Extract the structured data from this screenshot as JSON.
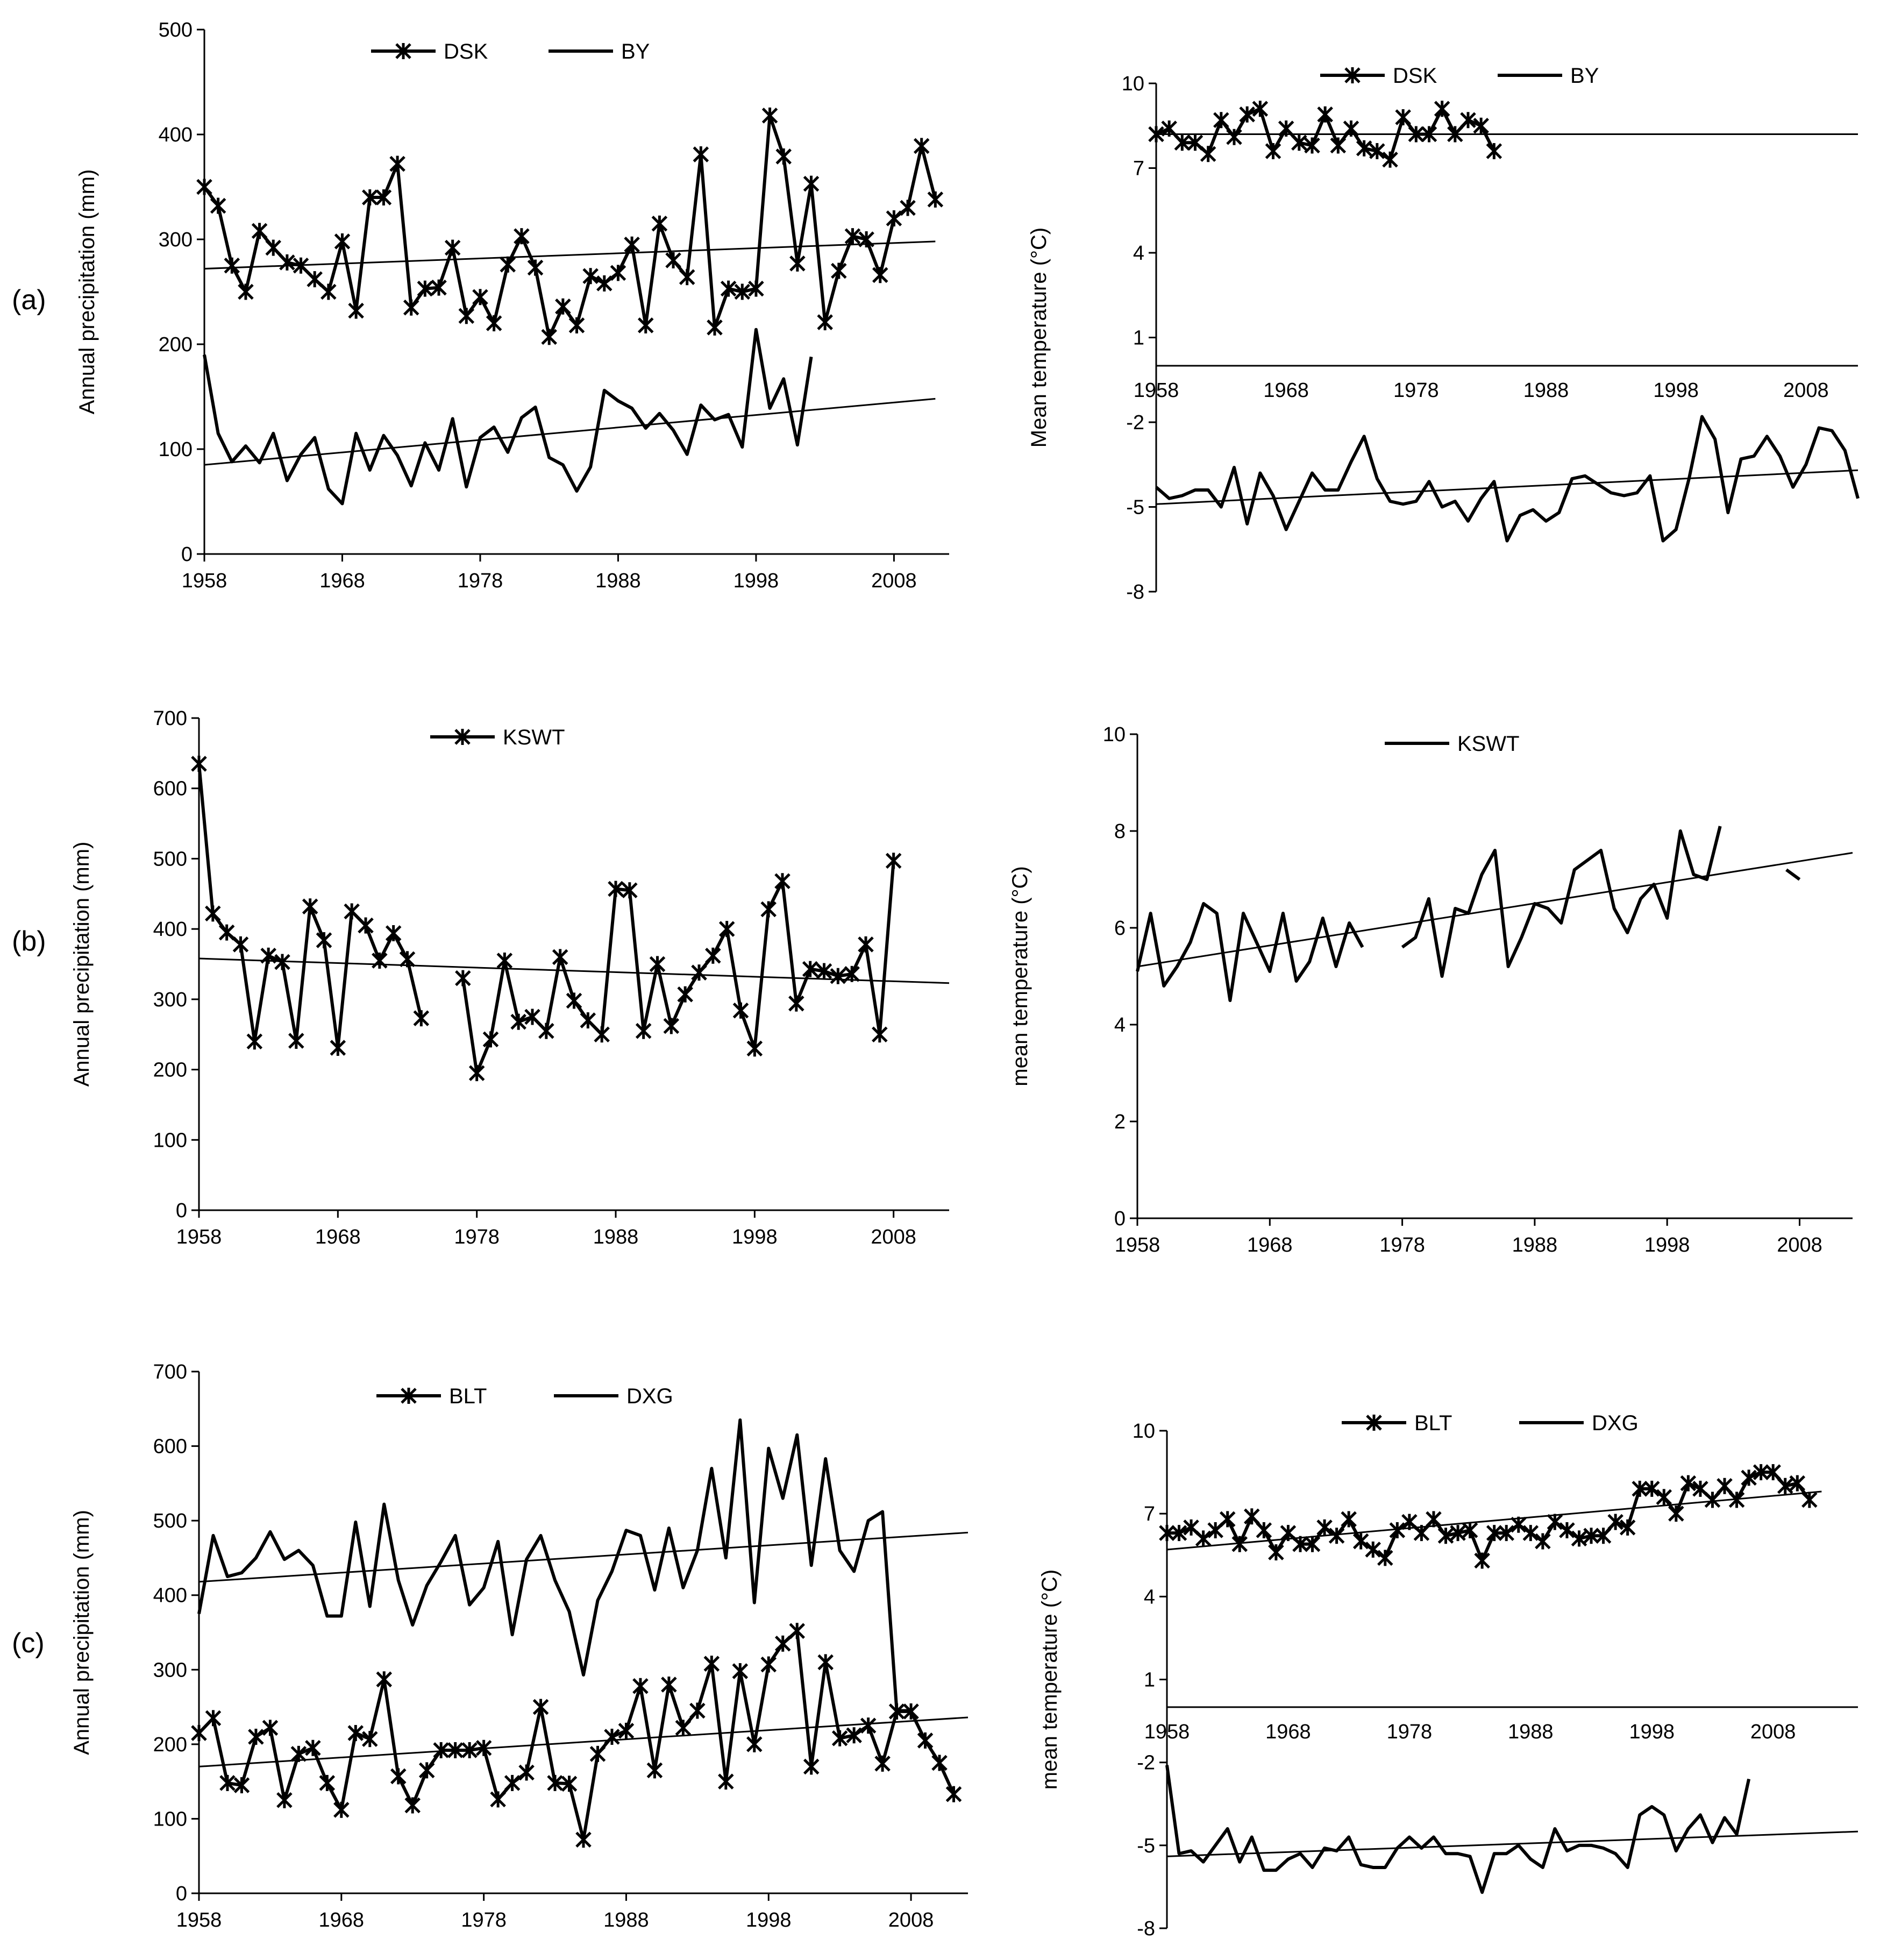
{
  "panel_labels": [
    "(a)",
    "(b)",
    "(c)"
  ],
  "chart_data": [
    {
      "id": "a-precip",
      "type": "line",
      "ylabel": "Annual precipitation (mm)",
      "ylim": [
        0,
        500
      ],
      "yticks": [
        "0",
        "100",
        "200",
        "300",
        "400",
        "500"
      ],
      "xlim": [
        1958,
        2012
      ],
      "xticks": [
        "1958",
        "1968",
        "1978",
        "1988",
        "1998",
        "2008"
      ],
      "legend": [
        "DSK",
        "BY"
      ],
      "series": [
        {
          "name": "DSK",
          "marker": "star",
          "x0": 1958,
          "values": [
            350,
            332,
            275,
            250,
            308,
            292,
            278,
            275,
            262,
            250,
            298,
            232,
            340,
            340,
            372,
            235,
            253,
            254,
            292,
            227,
            245,
            220,
            276,
            303,
            273,
            207,
            236,
            218,
            265,
            258,
            268,
            295,
            218,
            315,
            280,
            264,
            381,
            216,
            253,
            250,
            253,
            418,
            379,
            277,
            353,
            221,
            270,
            303,
            300,
            266,
            320,
            330,
            389,
            338
          ]
        },
        {
          "name": "BY",
          "marker": "none",
          "x0": 1958,
          "values": [
            190,
            115,
            88,
            103,
            87,
            115,
            70,
            95,
            111,
            62,
            48,
            115,
            80,
            113,
            94,
            65,
            106,
            80,
            129,
            64,
            111,
            121,
            97,
            130,
            140,
            92,
            85,
            60,
            83,
            156,
            146,
            139,
            120,
            134,
            118,
            95,
            142,
            128,
            133,
            102,
            214,
            139,
            167,
            104,
            188
          ]
        }
      ],
      "trends": [
        {
          "x": [
            1958,
            2011
          ],
          "y": [
            272,
            298
          ]
        },
        {
          "x": [
            1958,
            2011
          ],
          "y": [
            85,
            148
          ]
        }
      ]
    },
    {
      "id": "a-temp",
      "type": "line",
      "ylabel": "Mean temperature (°C)",
      "ylim": [
        -8,
        10
      ],
      "yticks": [
        "-8",
        "-5",
        "-2",
        "1",
        "4",
        "7",
        "10"
      ],
      "xlim": [
        1958,
        2012
      ],
      "xticks": [
        "1958",
        "1968",
        "1978",
        "1988",
        "1998",
        "2008"
      ],
      "xaxis_at": 0,
      "legend": [
        "DSK",
        "BY"
      ],
      "series": [
        {
          "name": "DSK",
          "marker": "star",
          "x0": 1958,
          "values": [
            8.2,
            8.4,
            7.9,
            7.9,
            7.5,
            8.7,
            8.1,
            8.9,
            9.1,
            7.6,
            8.4,
            7.9,
            7.8,
            8.9,
            7.8,
            8.4,
            7.7,
            7.6,
            7.3,
            8.8,
            8.2,
            8.2,
            9.1,
            8.2,
            8.7,
            8.5,
            7.6
          ]
        },
        {
          "name": "BY",
          "marker": "none",
          "x0": 1958,
          "values": [
            -4.3,
            -4.7,
            -4.6,
            -4.4,
            -4.4,
            -5.0,
            -3.6,
            -5.6,
            -3.8,
            -4.6,
            -5.8,
            -4.8,
            -3.8,
            -4.4,
            -4.4,
            -3.4,
            -2.5,
            -4.0,
            -4.8,
            -4.9,
            -4.8,
            -4.1,
            -5.0,
            -4.8,
            -5.5,
            -4.7,
            -4.1,
            -6.2,
            -5.3,
            -5.1,
            -5.5,
            -5.2,
            -4.0,
            -3.9,
            -4.2,
            -4.5,
            -4.6,
            -4.5,
            -3.9,
            -6.2,
            -5.8,
            -4.0,
            -1.8,
            -2.6,
            -5.2,
            -3.3,
            -3.2,
            -2.5,
            -3.2,
            -4.3,
            -3.5,
            -2.2,
            -2.3,
            -3.0,
            -4.7
          ]
        },
        {
          "name": "BY trend",
          "marker": "none",
          "x0": 1958,
          "line_only": true,
          "values": []
        }
      ],
      "trends": [
        {
          "x": [
            1958,
            2012
          ],
          "y": [
            8.2,
            8.2
          ]
        },
        {
          "x": [
            1958,
            2012
          ],
          "y": [
            -4.9,
            -3.7
          ]
        }
      ]
    },
    {
      "id": "b-precip",
      "type": "line",
      "ylabel": "Annual precipitation (mm)",
      "ylim": [
        0,
        700
      ],
      "yticks": [
        "0",
        "100",
        "200",
        "300",
        "400",
        "500",
        "600",
        "700"
      ],
      "xlim": [
        1958,
        2012
      ],
      "xticks": [
        "1958",
        "1968",
        "1978",
        "1988",
        "1998",
        "2008"
      ],
      "legend": [
        "KSWT"
      ],
      "series": [
        {
          "name": "KSWT",
          "marker": "star",
          "x0": 1958,
          "values": [
            635,
            422,
            395,
            378,
            240,
            362,
            353,
            241,
            432,
            384,
            231,
            425,
            405,
            355,
            394,
            357,
            273,
            null,
            null,
            330,
            195,
            243,
            355,
            268,
            275,
            255,
            360,
            298,
            270,
            250,
            457,
            455,
            255,
            350,
            262,
            307,
            338,
            362,
            400,
            284,
            230,
            428,
            468,
            294,
            343,
            340,
            333,
            336,
            378,
            250,
            497
          ]
        }
      ],
      "trends": [
        {
          "x": [
            1958,
            2012
          ],
          "y": [
            358,
            323
          ]
        }
      ]
    },
    {
      "id": "b-temp",
      "type": "line",
      "ylabel": "mean temperature (°C)",
      "ylim": [
        0,
        10
      ],
      "yticks": [
        "0",
        "2",
        "4",
        "6",
        "8",
        "10"
      ],
      "xlim": [
        1958,
        2012
      ],
      "xticks": [
        "1958",
        "1968",
        "1978",
        "1988",
        "1998",
        "2008"
      ],
      "legend": [
        "KSWT"
      ],
      "series": [
        {
          "name": "KSWT",
          "marker": "none",
          "x0": 1958,
          "values": [
            5.1,
            6.3,
            4.8,
            5.2,
            5.7,
            6.5,
            6.3,
            4.5,
            6.3,
            5.7,
            5.1,
            6.3,
            4.9,
            5.3,
            6.2,
            5.2,
            6.1,
            5.6,
            null,
            null,
            5.6,
            5.8,
            6.6,
            5.0,
            6.4,
            6.3,
            7.1,
            7.6,
            5.2,
            5.8,
            6.5,
            6.4,
            6.1,
            7.2,
            7.4,
            7.6,
            6.4,
            5.9,
            6.6,
            6.9,
            6.2,
            8.0,
            7.1,
            7.0,
            8.1,
            null,
            null,
            null,
            null,
            7.2,
            7.0
          ]
        }
      ],
      "trends": [
        {
          "x": [
            1958,
            2012
          ],
          "y": [
            5.2,
            7.55
          ]
        }
      ]
    },
    {
      "id": "c-precip",
      "type": "line",
      "ylabel": "Annual precipitation (mm)",
      "ylim": [
        0,
        700
      ],
      "yticks": [
        "0",
        "100",
        "200",
        "300",
        "400",
        "500",
        "600",
        "700"
      ],
      "xlim": [
        1958,
        2012
      ],
      "xticks": [
        "1958",
        "1968",
        "1978",
        "1988",
        "1998",
        "2008"
      ],
      "legend": [
        "BLT",
        "DXG"
      ],
      "series": [
        {
          "name": "BLT",
          "marker": "star",
          "x0": 1958,
          "values": [
            215,
            235,
            148,
            145,
            210,
            222,
            125,
            187,
            195,
            148,
            112,
            215,
            207,
            287,
            157,
            118,
            165,
            192,
            192,
            192,
            195,
            126,
            148,
            162,
            250,
            148,
            147,
            72,
            187,
            210,
            218,
            278,
            165,
            280,
            222,
            245,
            308,
            150,
            298,
            200,
            307,
            335,
            352,
            170,
            310,
            208,
            212,
            225,
            174,
            244,
            244,
            205,
            175,
            133
          ]
        },
        {
          "name": "DXG",
          "marker": "none",
          "x0": 1958,
          "values": [
            375,
            480,
            425,
            430,
            450,
            485,
            448,
            460,
            440,
            372,
            372,
            498,
            385,
            522,
            420,
            360,
            413,
            445,
            480,
            387,
            410,
            472,
            347,
            448,
            480,
            420,
            378,
            293,
            393,
            432,
            487,
            480,
            407,
            490,
            410,
            460,
            570,
            450,
            635,
            390,
            597,
            530,
            615,
            440,
            583,
            460,
            432,
            500,
            512,
            245,
            245
          ]
        }
      ],
      "trends": [
        {
          "x": [
            1958,
            2012
          ],
          "y": [
            418,
            484
          ]
        },
        {
          "x": [
            1958,
            2012
          ],
          "y": [
            170,
            236
          ]
        }
      ]
    },
    {
      "id": "c-temp",
      "type": "line",
      "ylabel": "mean temperature (°C)",
      "ylim": [
        -8,
        10
      ],
      "yticks": [
        "-8",
        "-5",
        "-2",
        "1",
        "4",
        "7",
        "10"
      ],
      "xlim": [
        1958,
        2015
      ],
      "xticks": [
        "1958",
        "1968",
        "1978",
        "1988",
        "1998",
        "2008"
      ],
      "xaxis_at": 0,
      "legend": [
        "BLT",
        "DXG"
      ],
      "series": [
        {
          "name": "BLT",
          "marker": "star",
          "x0": 1958,
          "values": [
            6.3,
            6.3,
            6.5,
            6.1,
            6.4,
            6.8,
            5.9,
            6.9,
            6.4,
            5.6,
            6.3,
            5.9,
            5.9,
            6.5,
            6.2,
            6.8,
            6.0,
            5.7,
            5.4,
            6.4,
            6.7,
            6.3,
            6.8,
            6.2,
            6.3,
            6.4,
            5.3,
            6.3,
            6.3,
            6.6,
            6.3,
            6.0,
            6.7,
            6.4,
            6.1,
            6.2,
            6.2,
            6.7,
            6.5,
            7.9,
            7.9,
            7.6,
            7.0,
            8.1,
            7.9,
            7.5,
            8.0,
            7.5,
            8.3,
            8.5,
            8.5,
            8.0,
            8.1,
            7.5
          ]
        },
        {
          "name": "DXG",
          "marker": "none",
          "x0": 1958,
          "values": [
            -2.1,
            -5.3,
            -5.2,
            -5.6,
            -5.0,
            -4.4,
            -5.6,
            -4.7,
            -5.9,
            -5.9,
            -5.5,
            -5.3,
            -5.8,
            -5.1,
            -5.2,
            -4.7,
            -5.7,
            -5.8,
            -5.8,
            -5.1,
            -4.7,
            -5.1,
            -4.7,
            -5.3,
            -5.3,
            -5.4,
            -6.7,
            -5.3,
            -5.3,
            -5.0,
            -5.5,
            -5.8,
            -4.4,
            -5.2,
            -5.0,
            -5.0,
            -5.1,
            -5.3,
            -5.8,
            -3.9,
            -3.6,
            -3.9,
            -5.2,
            -4.4,
            -3.9,
            -4.9,
            -4.0,
            -4.6,
            -2.6
          ]
        }
      ],
      "trends": [
        {
          "x": [
            1958,
            2012
          ],
          "y": [
            5.7,
            7.8
          ]
        },
        {
          "x": [
            1958,
            2015
          ],
          "y": [
            -5.4,
            -4.5
          ]
        }
      ]
    }
  ]
}
